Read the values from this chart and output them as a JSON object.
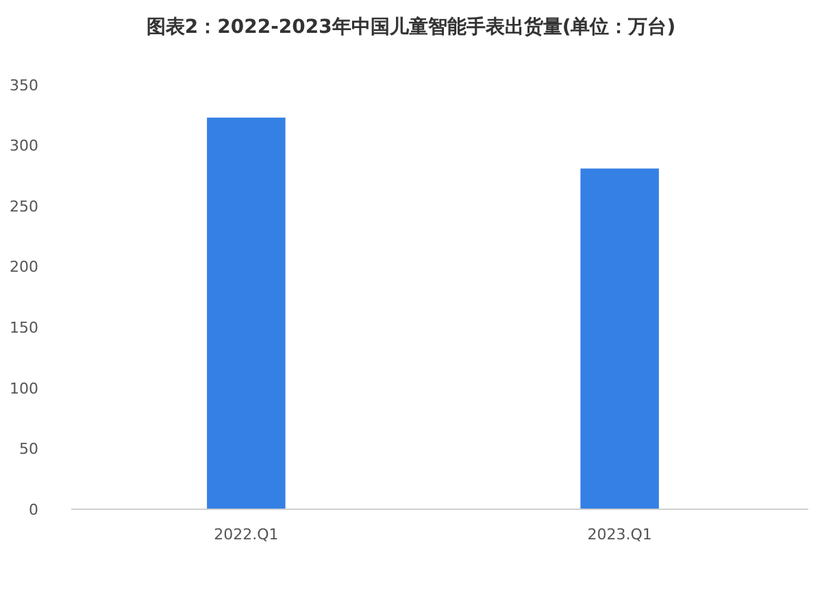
{
  "chart_data": {
    "type": "bar",
    "title": "图表2：2022-2023年中国儿童智能手表出货量(单位：万台)",
    "categories": [
      "2022.Q1",
      "2023.Q1"
    ],
    "values": [
      323,
      281
    ],
    "color": "#3580e4",
    "ylim": [
      0,
      350
    ],
    "yticks": [
      0,
      50,
      100,
      150,
      200,
      250,
      300,
      350
    ],
    "grid": false
  }
}
